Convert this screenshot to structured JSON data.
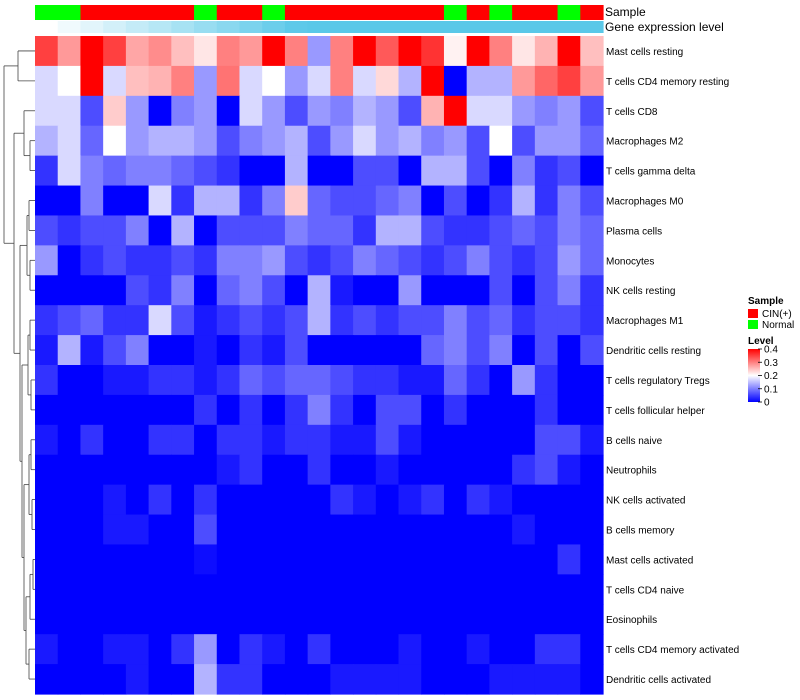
{
  "chart_data": {
    "type": "heatmap",
    "title": "",
    "annotation_tracks": [
      {
        "name": "Sample",
        "label": "Sample"
      },
      {
        "name": "Gene expression level",
        "label": "Gene expression level"
      }
    ],
    "sample_groups": [
      "Normal",
      "Normal",
      "CIN(+)",
      "CIN(+)",
      "CIN(+)",
      "CIN(+)",
      "CIN(+)",
      "Normal",
      "CIN(+)",
      "CIN(+)",
      "Normal",
      "CIN(+)",
      "CIN(+)",
      "CIN(+)",
      "CIN(+)",
      "CIN(+)",
      "CIN(+)",
      "CIN(+)",
      "Normal",
      "CIN(+)",
      "Normal",
      "CIN(+)",
      "CIN(+)",
      "Normal",
      "CIN(+)"
    ],
    "expression_level_gradient": [
      "#ffffff",
      "#5ac8e8"
    ],
    "rows": [
      "Mast cells resting",
      "T cells CD4 memory resting",
      "T cells CD8",
      "Macrophages M2",
      "T cells gamma delta",
      "Macrophages M0",
      "Plasma cells",
      "Monocytes",
      "NK cells resting",
      "Macrophages M1",
      "Dendritic cells resting",
      "T cells regulatory  Tregs",
      "T cells follicular helper",
      "B cells naive",
      "Neutrophils",
      "NK cells activated",
      "B cells memory",
      "Mast cells activated",
      "T cells CD4 naive",
      "Eosinophils",
      "T cells CD4 memory activated",
      "Dendritic cells activated"
    ],
    "values": [
      [
        0.35,
        0.28,
        0.4,
        0.35,
        0.27,
        0.29,
        0.25,
        0.22,
        0.3,
        0.28,
        0.4,
        0.3,
        0.12,
        0.3,
        0.4,
        0.33,
        0.4,
        0.36,
        0.21,
        0.4,
        0.3,
        0.22,
        0.26,
        0.4,
        0.25
      ],
      [
        0.17,
        0.2,
        0.4,
        0.17,
        0.25,
        0.26,
        0.3,
        0.12,
        0.31,
        0.17,
        0.2,
        0.12,
        0.17,
        0.3,
        0.17,
        0.23,
        0.14,
        0.4,
        0.0,
        0.14,
        0.14,
        0.28,
        0.32,
        0.35,
        0.28
      ],
      [
        0.17,
        0.17,
        0.06,
        0.24,
        0.12,
        0.0,
        0.1,
        0.12,
        0.0,
        0.17,
        0.12,
        0.06,
        0.12,
        0.1,
        0.14,
        0.12,
        0.06,
        0.26,
        0.4,
        0.17,
        0.17,
        0.12,
        0.1,
        0.12,
        0.06
      ],
      [
        0.14,
        0.17,
        0.08,
        0.2,
        0.12,
        0.14,
        0.14,
        0.12,
        0.06,
        0.1,
        0.12,
        0.14,
        0.06,
        0.12,
        0.17,
        0.12,
        0.14,
        0.1,
        0.12,
        0.06,
        0.2,
        0.06,
        0.12,
        0.12,
        0.08
      ],
      [
        0.04,
        0.17,
        0.1,
        0.08,
        0.1,
        0.1,
        0.08,
        0.06,
        0.04,
        0.0,
        0.0,
        0.14,
        0.0,
        0.0,
        0.06,
        0.06,
        0.0,
        0.14,
        0.14,
        0.06,
        0.0,
        0.1,
        0.04,
        0.06,
        0.0
      ],
      [
        0.0,
        0.0,
        0.1,
        0.0,
        0.0,
        0.17,
        0.04,
        0.14,
        0.14,
        0.04,
        0.1,
        0.24,
        0.08,
        0.06,
        0.06,
        0.08,
        0.1,
        0.0,
        0.06,
        0.0,
        0.04,
        0.14,
        0.04,
        0.1,
        0.06
      ],
      [
        0.06,
        0.04,
        0.06,
        0.06,
        0.1,
        0.0,
        0.14,
        0.0,
        0.06,
        0.06,
        0.06,
        0.1,
        0.08,
        0.08,
        0.04,
        0.14,
        0.14,
        0.06,
        0.04,
        0.04,
        0.06,
        0.08,
        0.06,
        0.1,
        0.08
      ],
      [
        0.12,
        0.0,
        0.04,
        0.06,
        0.04,
        0.04,
        0.06,
        0.04,
        0.1,
        0.1,
        0.12,
        0.06,
        0.04,
        0.06,
        0.1,
        0.08,
        0.06,
        0.04,
        0.06,
        0.1,
        0.06,
        0.04,
        0.06,
        0.12,
        0.08
      ],
      [
        0.0,
        0.0,
        0.0,
        0.0,
        0.06,
        0.04,
        0.1,
        0.0,
        0.08,
        0.1,
        0.06,
        0.0,
        0.14,
        0.02,
        0.0,
        0.0,
        0.12,
        0.0,
        0.0,
        0.0,
        0.06,
        0.0,
        0.06,
        0.1,
        0.04
      ],
      [
        0.04,
        0.06,
        0.08,
        0.04,
        0.04,
        0.17,
        0.06,
        0.02,
        0.04,
        0.06,
        0.04,
        0.06,
        0.14,
        0.04,
        0.06,
        0.04,
        0.06,
        0.06,
        0.1,
        0.06,
        0.08,
        0.04,
        0.06,
        0.06,
        0.04
      ],
      [
        0.02,
        0.14,
        0.02,
        0.06,
        0.1,
        0.0,
        0.0,
        0.02,
        0.0,
        0.04,
        0.02,
        0.06,
        0.0,
        0.0,
        0.0,
        0.0,
        0.0,
        0.08,
        0.1,
        0.06,
        0.1,
        0.0,
        0.06,
        0.0,
        0.06
      ],
      [
        0.04,
        0.0,
        0.0,
        0.02,
        0.02,
        0.04,
        0.04,
        0.02,
        0.04,
        0.08,
        0.06,
        0.08,
        0.08,
        0.06,
        0.04,
        0.04,
        0.02,
        0.02,
        0.08,
        0.04,
        0.0,
        0.12,
        0.04,
        0.0,
        0.0
      ],
      [
        0.0,
        0.0,
        0.0,
        0.0,
        0.0,
        0.0,
        0.0,
        0.04,
        0.0,
        0.04,
        0.0,
        0.04,
        0.1,
        0.04,
        0.0,
        0.06,
        0.06,
        0.0,
        0.04,
        0.0,
        0.0,
        0.0,
        0.04,
        0.0,
        0.0
      ],
      [
        0.02,
        0.0,
        0.04,
        0.0,
        0.0,
        0.04,
        0.04,
        0.0,
        0.04,
        0.04,
        0.02,
        0.04,
        0.04,
        0.02,
        0.02,
        0.06,
        0.02,
        0.0,
        0.0,
        0.0,
        0.0,
        0.0,
        0.06,
        0.06,
        0.02
      ],
      [
        0.0,
        0.0,
        0.0,
        0.0,
        0.0,
        0.0,
        0.0,
        0.0,
        0.02,
        0.04,
        0.0,
        0.0,
        0.04,
        0.0,
        0.0,
        0.02,
        0.0,
        0.0,
        0.0,
        0.0,
        0.0,
        0.04,
        0.06,
        0.02,
        0.0
      ],
      [
        0.0,
        0.0,
        0.0,
        0.02,
        0.0,
        0.04,
        0.0,
        0.04,
        0.0,
        0.0,
        0.0,
        0.0,
        0.0,
        0.04,
        0.02,
        0.0,
        0.02,
        0.04,
        0.0,
        0.04,
        0.02,
        0.0,
        0.0,
        0.0,
        0.0
      ],
      [
        0.0,
        0.0,
        0.0,
        0.02,
        0.02,
        0.0,
        0.0,
        0.06,
        0.0,
        0.0,
        0.0,
        0.0,
        0.0,
        0.0,
        0.0,
        0.0,
        0.0,
        0.0,
        0.0,
        0.0,
        0.0,
        0.02,
        0.0,
        0.0,
        0.0
      ],
      [
        0.0,
        0.0,
        0.0,
        0.0,
        0.0,
        0.0,
        0.0,
        0.01,
        0.0,
        0.0,
        0.0,
        0.0,
        0.0,
        0.0,
        0.0,
        0.0,
        0.0,
        0.0,
        0.0,
        0.0,
        0.0,
        0.0,
        0.0,
        0.04,
        0.0
      ],
      [
        0.0,
        0.0,
        0.0,
        0.0,
        0.0,
        0.0,
        0.0,
        0.0,
        0.0,
        0.0,
        0.0,
        0.0,
        0.0,
        0.0,
        0.0,
        0.0,
        0.0,
        0.0,
        0.0,
        0.0,
        0.0,
        0.0,
        0.0,
        0.0,
        0.0
      ],
      [
        0.0,
        0.0,
        0.0,
        0.0,
        0.0,
        0.0,
        0.0,
        0.0,
        0.0,
        0.0,
        0.0,
        0.0,
        0.0,
        0.0,
        0.0,
        0.0,
        0.0,
        0.0,
        0.0,
        0.0,
        0.0,
        0.0,
        0.0,
        0.0,
        0.0
      ],
      [
        0.02,
        0.0,
        0.0,
        0.02,
        0.02,
        0.0,
        0.04,
        0.12,
        0.0,
        0.04,
        0.02,
        0.0,
        0.04,
        0.0,
        0.0,
        0.0,
        0.02,
        0.0,
        0.0,
        0.02,
        0.0,
        0.0,
        0.04,
        0.04,
        0.0
      ],
      [
        0.0,
        0.0,
        0.0,
        0.0,
        0.02,
        0.0,
        0.0,
        0.14,
        0.04,
        0.04,
        0.0,
        0.0,
        0.0,
        0.02,
        0.02,
        0.02,
        0.02,
        0.0,
        0.0,
        0.0,
        0.02,
        0.02,
        0.02,
        0.02,
        0.0
      ]
    ],
    "value_range": [
      0,
      0.4
    ],
    "color_stops": [
      {
        "value": 0,
        "color": "#0000ff"
      },
      {
        "value": 0.2,
        "color": "#ffffff"
      },
      {
        "value": 0.4,
        "color": "#ff0000"
      }
    ],
    "legend": {
      "sample_title": "Sample",
      "sample_entries": [
        {
          "label": "CIN(+)",
          "color": "#ff0000"
        },
        {
          "label": "Normal",
          "color": "#00ff00"
        }
      ],
      "level_title": "Level",
      "level_ticks": [
        "0.4",
        "0.3",
        "0.2",
        "0.1",
        "0"
      ],
      "level_tick_values": [
        0.4,
        0.3,
        0.2,
        0.1,
        0
      ],
      "placement": "right"
    },
    "dendrogram": "rows"
  }
}
